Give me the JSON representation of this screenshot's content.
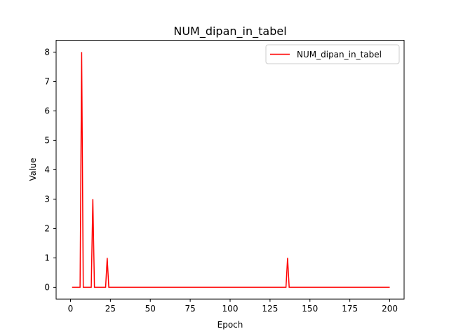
{
  "chart_data": {
    "type": "line",
    "title": "NUM_dipan_in_tabel",
    "xlabel": "Epoch",
    "ylabel": "Value",
    "xlim": [
      -9,
      209
    ],
    "ylim": [
      -0.4,
      8.4
    ],
    "xticks": [
      0,
      25,
      50,
      75,
      100,
      125,
      150,
      175,
      200
    ],
    "yticks": [
      0,
      1,
      2,
      3,
      4,
      5,
      6,
      7,
      8
    ],
    "grid": false,
    "legend_position": "top-right",
    "series": [
      {
        "name": "NUM_dipan_in_tabel",
        "color": "#ff0000",
        "points": [
          [
            1,
            0
          ],
          [
            6,
            0
          ],
          [
            7,
            8
          ],
          [
            8,
            0
          ],
          [
            13,
            0
          ],
          [
            14,
            3
          ],
          [
            15,
            0
          ],
          [
            22,
            0
          ],
          [
            23,
            1
          ],
          [
            24,
            0
          ],
          [
            135,
            0
          ],
          [
            136,
            1
          ],
          [
            137,
            0
          ],
          [
            200,
            0
          ]
        ]
      }
    ]
  }
}
